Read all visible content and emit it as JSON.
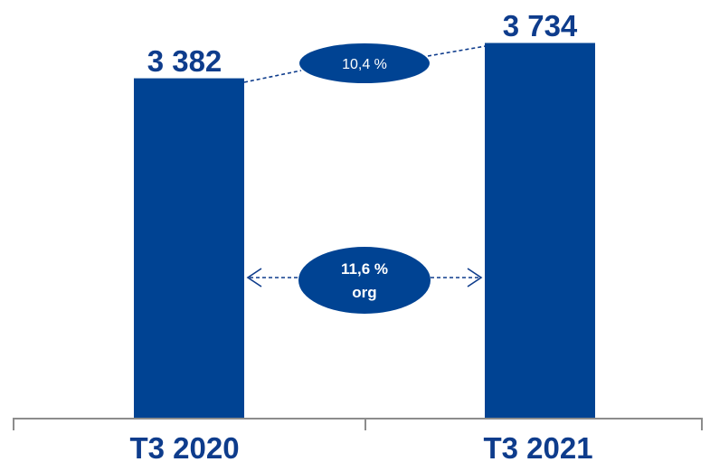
{
  "chart_data": {
    "type": "bar",
    "categories": [
      "T3 2020",
      "T3 2021"
    ],
    "values": [
      3382,
      3734
    ],
    "value_labels": [
      "3 382",
      "3 734"
    ],
    "annotations": {
      "growth": "10,4 %",
      "organic_growth_line1": "11,6 %",
      "organic_growth_line2": "org"
    },
    "title": "",
    "xlabel": "",
    "ylabel": "",
    "grid": false,
    "legend": "none"
  },
  "colors": {
    "bar": "#004393",
    "text": "#0E3C8C",
    "axis": "#8C8C8C",
    "bubble_text": "#FFFFFF"
  }
}
